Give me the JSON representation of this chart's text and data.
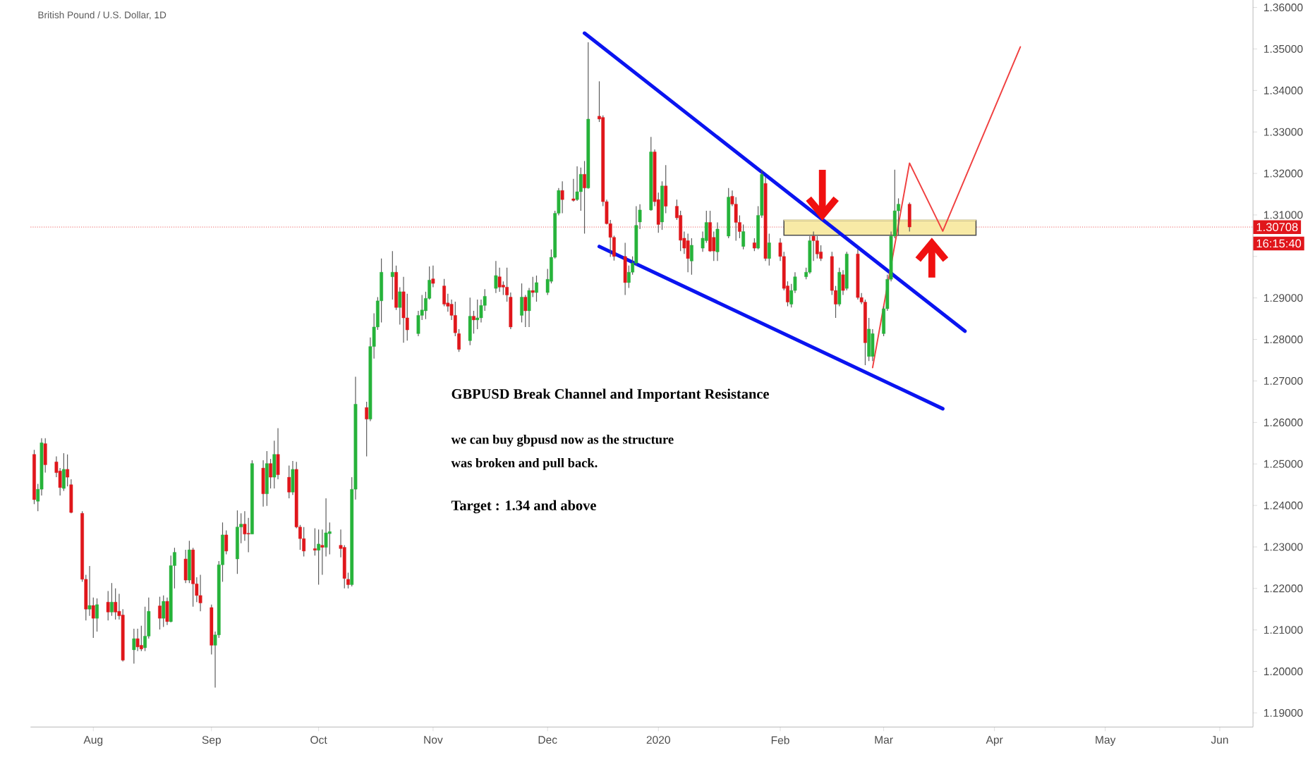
{
  "chart_data": {
    "type": "candlestick",
    "title": "British Pound / U.S. Dollar, 1D",
    "x": [
      "2019-07-16",
      "2019-07-17",
      "2019-07-18",
      "2019-07-19",
      "2019-07-22",
      "2019-07-23",
      "2019-07-24",
      "2019-07-25",
      "2019-07-26",
      "2019-07-29",
      "2019-07-30",
      "2019-07-31",
      "2019-08-01",
      "2019-08-02",
      "2019-08-05",
      "2019-08-06",
      "2019-08-07",
      "2019-08-08",
      "2019-08-09",
      "2019-08-12",
      "2019-08-13",
      "2019-08-14",
      "2019-08-15",
      "2019-08-16",
      "2019-08-19",
      "2019-08-20",
      "2019-08-21",
      "2019-08-22",
      "2019-08-23",
      "2019-08-26",
      "2019-08-27",
      "2019-08-28",
      "2019-08-29",
      "2019-08-30",
      "2019-09-02",
      "2019-09-03",
      "2019-09-04",
      "2019-09-05",
      "2019-09-06",
      "2019-09-09",
      "2019-09-10",
      "2019-09-11",
      "2019-09-12",
      "2019-09-13",
      "2019-09-16",
      "2019-09-17",
      "2019-09-18",
      "2019-09-19",
      "2019-09-20",
      "2019-09-23",
      "2019-09-24",
      "2019-09-25",
      "2019-09-26",
      "2019-09-27",
      "2019-09-30",
      "2019-10-01",
      "2019-10-02",
      "2019-10-03",
      "2019-10-04",
      "2019-10-07",
      "2019-10-08",
      "2019-10-09",
      "2019-10-10",
      "2019-10-11",
      "2019-10-14",
      "2019-10-15",
      "2019-10-16",
      "2019-10-17",
      "2019-10-18",
      "2019-10-21",
      "2019-10-22",
      "2019-10-23",
      "2019-10-24",
      "2019-10-25",
      "2019-10-28",
      "2019-10-29",
      "2019-10-30",
      "2019-10-31",
      "2019-11-01",
      "2019-11-04",
      "2019-11-05",
      "2019-11-06",
      "2019-11-07",
      "2019-11-08",
      "2019-11-11",
      "2019-11-12",
      "2019-11-13",
      "2019-11-14",
      "2019-11-15",
      "2019-11-18",
      "2019-11-19",
      "2019-11-20",
      "2019-11-21",
      "2019-11-22",
      "2019-11-25",
      "2019-11-26",
      "2019-11-27",
      "2019-11-28",
      "2019-11-29",
      "2019-12-02",
      "2019-12-03",
      "2019-12-04",
      "2019-12-05",
      "2019-12-06",
      "2019-12-09",
      "2019-12-10",
      "2019-12-11",
      "2019-12-12",
      "2019-12-13",
      "2019-12-16",
      "2019-12-17",
      "2019-12-18",
      "2019-12-19",
      "2019-12-20",
      "2019-12-23",
      "2019-12-24",
      "2019-12-25",
      "2019-12-26",
      "2019-12-27",
      "2019-12-30",
      "2019-12-31",
      "2020-01-01",
      "2020-01-02",
      "2020-01-03",
      "2020-01-06",
      "2020-01-07",
      "2020-01-08",
      "2020-01-09",
      "2020-01-10",
      "2020-01-13",
      "2020-01-14",
      "2020-01-15",
      "2020-01-16",
      "2020-01-17",
      "2020-01-20",
      "2020-01-21",
      "2020-01-22",
      "2020-01-23",
      "2020-01-24",
      "2020-01-27",
      "2020-01-28",
      "2020-01-29",
      "2020-01-30",
      "2020-01-31",
      "2020-02-03",
      "2020-02-04",
      "2020-02-05",
      "2020-02-06",
      "2020-02-07",
      "2020-02-10",
      "2020-02-11",
      "2020-02-12",
      "2020-02-13",
      "2020-02-14",
      "2020-02-17",
      "2020-02-18",
      "2020-02-19",
      "2020-02-20",
      "2020-02-21",
      "2020-02-24",
      "2020-02-25",
      "2020-02-26",
      "2020-02-27",
      "2020-02-28",
      "2020-03-02",
      "2020-03-03",
      "2020-03-04",
      "2020-03-05",
      "2020-03-06",
      "2020-03-09"
    ],
    "ohlc": [
      [
        1.2523,
        1.2534,
        1.2403,
        1.2414
      ],
      [
        1.241,
        1.2452,
        1.2386,
        1.2439
      ],
      [
        1.2439,
        1.2562,
        1.2424,
        1.2551
      ],
      [
        1.2549,
        1.2562,
        1.2479,
        1.2498
      ],
      [
        1.2505,
        1.2518,
        1.2468,
        1.2479
      ],
      [
        1.2483,
        1.249,
        1.2424,
        1.2443
      ],
      [
        1.2441,
        1.2526,
        1.2435,
        1.2487
      ],
      [
        1.2487,
        1.2523,
        1.2446,
        1.2468
      ],
      [
        1.245,
        1.2463,
        1.2381,
        1.2383
      ],
      [
        1.2381,
        1.2386,
        1.2216,
        1.2222
      ],
      [
        1.2222,
        1.2233,
        1.2123,
        1.215
      ],
      [
        1.215,
        1.2254,
        1.2134,
        1.2159
      ],
      [
        1.2159,
        1.2178,
        1.2081,
        1.2128
      ],
      [
        1.2128,
        1.2176,
        1.2096,
        1.2161
      ],
      [
        1.2167,
        1.2194,
        1.2123,
        1.2143
      ],
      [
        1.2143,
        1.2213,
        1.2134,
        1.2167
      ],
      [
        1.2167,
        1.22,
        1.2125,
        1.2143
      ],
      [
        1.2145,
        1.2187,
        1.2125,
        1.2134
      ],
      [
        1.2136,
        1.215,
        1.2024,
        1.2027
      ],
      [
        1.2052,
        1.2103,
        1.2019,
        1.2079
      ],
      [
        1.2079,
        1.2103,
        1.2049,
        1.2059
      ],
      [
        1.2063,
        1.211,
        1.2049,
        1.2054
      ],
      [
        1.2057,
        1.2156,
        1.2049,
        1.2085
      ],
      [
        1.2085,
        1.2178,
        1.2079,
        1.2145
      ],
      [
        1.2158,
        1.218,
        1.2101,
        1.2128
      ],
      [
        1.2128,
        1.2183,
        1.2107,
        1.2169
      ],
      [
        1.2169,
        1.2178,
        1.2112,
        1.212
      ],
      [
        1.212,
        1.2279,
        1.2118,
        1.2255
      ],
      [
        1.2255,
        1.2298,
        1.22,
        1.2287
      ],
      [
        1.2271,
        1.2293,
        1.2213,
        1.222
      ],
      [
        1.222,
        1.2315,
        1.2213,
        1.2293
      ],
      [
        1.2293,
        1.2298,
        1.2156,
        1.2211
      ],
      [
        1.2211,
        1.2227,
        1.2167,
        1.2183
      ],
      [
        1.2183,
        1.2233,
        1.2145,
        1.2165
      ],
      [
        1.2154,
        1.2161,
        1.2041,
        1.2063
      ],
      [
        1.2063,
        1.2096,
        1.1961,
        1.2088
      ],
      [
        1.2088,
        1.2266,
        1.2081,
        1.2257
      ],
      [
        1.2257,
        1.2359,
        1.2216,
        1.2329
      ],
      [
        1.2329,
        1.234,
        1.2282,
        1.229
      ],
      [
        1.2271,
        1.2388,
        1.2235,
        1.2348
      ],
      [
        1.2348,
        1.2381,
        1.2309,
        1.2355
      ],
      [
        1.2355,
        1.2386,
        1.2315,
        1.2331
      ],
      [
        1.2333,
        1.237,
        1.2287,
        1.2331
      ],
      [
        1.2331,
        1.2509,
        1.2331,
        1.2501
      ],
      [
        1.249,
        1.2509,
        1.2397,
        1.2428
      ],
      [
        1.2428,
        1.2531,
        1.2399,
        1.2501
      ],
      [
        1.2501,
        1.2512,
        1.2441,
        1.2468
      ],
      [
        1.2468,
        1.2556,
        1.2441,
        1.2523
      ],
      [
        1.2523,
        1.2586,
        1.2463,
        1.2474
      ],
      [
        1.2468,
        1.2496,
        1.2417,
        1.2432
      ],
      [
        1.2432,
        1.2507,
        1.2425,
        1.2487
      ],
      [
        1.2487,
        1.2505,
        1.2345,
        1.2348
      ],
      [
        1.2348,
        1.2353,
        1.2293,
        1.232
      ],
      [
        1.232,
        1.2348,
        1.2277,
        1.229
      ],
      [
        1.2296,
        1.2345,
        1.2279,
        1.2292
      ],
      [
        1.2292,
        1.2342,
        1.2209,
        1.2307
      ],
      [
        1.2304,
        1.2342,
        1.2233,
        1.2299
      ],
      [
        1.2299,
        1.2417,
        1.2277,
        1.2334
      ],
      [
        1.2332,
        1.2359,
        1.2282,
        1.2337
      ],
      [
        1.2304,
        1.2342,
        1.2275,
        1.2296
      ],
      [
        1.2299,
        1.2304,
        1.22,
        1.2224
      ],
      [
        1.2222,
        1.2238,
        1.22,
        1.2209
      ],
      [
        1.2209,
        1.2468,
        1.2205,
        1.2439
      ],
      [
        1.2439,
        1.271,
        1.2414,
        1.2644
      ],
      [
        1.2636,
        1.265,
        1.2518,
        1.2608
      ],
      [
        1.2608,
        1.2805,
        1.2603,
        1.2783
      ],
      [
        1.2783,
        1.2863,
        1.2754,
        1.283
      ],
      [
        1.283,
        1.2902,
        1.2823,
        1.2893
      ],
      [
        1.2893,
        1.2995,
        1.2841,
        1.2962
      ],
      [
        1.2951,
        1.3013,
        1.2896,
        1.2962
      ],
      [
        1.2962,
        1.2978,
        1.2871,
        1.2877
      ],
      [
        1.2877,
        1.2926,
        1.2836,
        1.2915
      ],
      [
        1.2915,
        1.2951,
        1.2792,
        1.2852
      ],
      [
        1.2852,
        1.291,
        1.2797,
        1.2823
      ],
      [
        1.2814,
        1.2869,
        1.2808,
        1.2858
      ],
      [
        1.2858,
        1.2907,
        1.2847,
        1.2871
      ],
      [
        1.2869,
        1.2915,
        1.2849,
        1.2899
      ],
      [
        1.2899,
        1.2976,
        1.2896,
        1.2943
      ],
      [
        1.2946,
        1.2978,
        1.2926,
        1.2935
      ],
      [
        1.2929,
        1.2946,
        1.288,
        1.2885
      ],
      [
        1.2888,
        1.291,
        1.2867,
        1.288
      ],
      [
        1.2885,
        1.2896,
        1.2847,
        1.2858
      ],
      [
        1.2858,
        1.2891,
        1.2808,
        1.2816
      ],
      [
        1.2814,
        1.2825,
        1.277,
        1.2776
      ],
      [
        1.2797,
        1.2901,
        1.2786,
        1.2856
      ],
      [
        1.2856,
        1.2869,
        1.2814,
        1.2847
      ],
      [
        1.2847,
        1.2896,
        1.2825,
        1.2852
      ],
      [
        1.2852,
        1.2896,
        1.2841,
        1.2882
      ],
      [
        1.2882,
        1.2921,
        1.2869,
        1.2904
      ],
      [
        1.2923,
        1.2989,
        1.2912,
        1.2954
      ],
      [
        1.2951,
        1.2973,
        1.2915,
        1.2926
      ],
      [
        1.2931,
        1.294,
        1.2907,
        1.2926
      ],
      [
        1.2926,
        1.2973,
        1.2891,
        1.2907
      ],
      [
        1.2902,
        1.2913,
        1.2825,
        1.283
      ],
      [
        1.2858,
        1.2935,
        1.2841,
        1.2902
      ],
      [
        1.2902,
        1.2907,
        1.283,
        1.2869
      ],
      [
        1.2869,
        1.2924,
        1.283,
        1.2918
      ],
      [
        1.2918,
        1.2951,
        1.2902,
        1.2913
      ],
      [
        1.2913,
        1.2954,
        1.2891,
        1.2937
      ],
      [
        1.2913,
        1.297,
        1.2907,
        1.2945
      ],
      [
        1.294,
        1.3017,
        1.2935,
        1.2998
      ],
      [
        1.2998,
        1.311,
        1.2995,
        1.3104
      ],
      [
        1.3104,
        1.3165,
        1.3099,
        1.3159
      ],
      [
        1.3159,
        1.3181,
        1.3104,
        1.3137
      ],
      [
        1.3139,
        1.3187,
        1.3132,
        1.3135
      ],
      [
        1.3137,
        1.3217,
        1.3134,
        1.3156
      ],
      [
        1.3156,
        1.3214,
        1.311,
        1.3198
      ],
      [
        1.3198,
        1.323,
        1.3055,
        1.3165
      ],
      [
        1.3165,
        1.3516,
        1.3163,
        1.3331
      ],
      [
        1.3338,
        1.3422,
        1.3324,
        1.3331
      ],
      [
        1.3335,
        1.334,
        1.3121,
        1.3132
      ],
      [
        1.3132,
        1.3137,
        1.3077,
        1.3079
      ],
      [
        1.3079,
        1.3088,
        1.2999,
        1.3046
      ],
      [
        1.3046,
        1.305,
        1.299,
        1.3
      ],
      [
        1.3,
        1.3033,
        1.2907,
        1.2937
      ],
      [
        1.2937,
        1.2978,
        1.2924,
        1.2962
      ],
      [
        1.2962,
        1.3,
        1.2956,
        1.2984
      ],
      [
        1.2984,
        1.3121,
        1.2978,
        1.3075
      ],
      [
        1.3083,
        1.3126,
        1.3066,
        1.3112
      ],
      [
        1.3112,
        1.3288,
        1.311,
        1.3252
      ],
      [
        1.3252,
        1.3258,
        1.3121,
        1.3132
      ],
      [
        1.3137,
        1.3154,
        1.3057,
        1.3077
      ],
      [
        1.3083,
        1.3181,
        1.3064,
        1.317
      ],
      [
        1.317,
        1.322,
        1.3104,
        1.3121
      ],
      [
        1.3121,
        1.3137,
        1.3088,
        1.3093
      ],
      [
        1.3099,
        1.311,
        1.3013,
        1.3039
      ],
      [
        1.3044,
        1.306,
        1.3006,
        1.302
      ],
      [
        1.3038,
        1.3055,
        1.2962,
        1.2995
      ],
      [
        1.2989,
        1.3044,
        1.2956,
        1.3027
      ],
      [
        1.302,
        1.306,
        1.3011,
        1.3044
      ],
      [
        1.3038,
        1.311,
        1.3033,
        1.3082
      ],
      [
        1.3082,
        1.311,
        1.3011,
        1.3013
      ],
      [
        1.3046,
        1.306,
        1.2989,
        1.3013
      ],
      [
        1.3011,
        1.3082,
        1.2989,
        1.3066
      ],
      [
        1.3049,
        1.3165,
        1.3044,
        1.3143
      ],
      [
        1.3145,
        1.3159,
        1.3121,
        1.3126
      ],
      [
        1.3126,
        1.3143,
        1.3038,
        1.3082
      ],
      [
        1.3082,
        1.3099,
        1.3044,
        1.306
      ],
      [
        1.3024,
        1.3077,
        1.3017,
        1.306
      ],
      [
        1.3033,
        1.3044,
        1.3013,
        1.302
      ],
      [
        1.302,
        1.3121,
        1.3017,
        1.3099
      ],
      [
        1.3099,
        1.3209,
        1.3093,
        1.3198
      ],
      [
        1.3176,
        1.3192,
        1.2989,
        1.2995
      ],
      [
        1.2995,
        1.3055,
        1.2978,
        1.3033
      ],
      [
        1.3033,
        1.3044,
        1.2989,
        1.3
      ],
      [
        1.3,
        1.3011,
        1.2918,
        1.2923
      ],
      [
        1.2929,
        1.294,
        1.288,
        1.289
      ],
      [
        1.2885,
        1.2934,
        1.2877,
        1.2918
      ],
      [
        1.2918,
        1.2962,
        1.2912,
        1.2951
      ],
      [
        1.2951,
        1.2973,
        1.2945,
        1.2962
      ],
      [
        1.2962,
        1.3049,
        1.2958,
        1.3038
      ],
      [
        1.3049,
        1.306,
        1.2989,
        1.3038
      ],
      [
        1.3038,
        1.3049,
        1.2995,
        1.3006
      ],
      [
        1.3011,
        1.3027,
        1.2989,
        1.2995
      ],
      [
        1.3,
        1.3011,
        1.2907,
        1.2918
      ],
      [
        1.2918,
        1.2929,
        1.2852,
        1.2885
      ],
      [
        1.2885,
        1.2973,
        1.288,
        1.2962
      ],
      [
        1.2956,
        1.2967,
        1.2907,
        1.2918
      ],
      [
        1.2923,
        1.3011,
        1.2918,
        1.3006
      ],
      [
        1.3006,
        1.3017,
        1.2896,
        1.2901
      ],
      [
        1.2901,
        1.2912,
        1.2885,
        1.289
      ],
      [
        1.289,
        1.2896,
        1.2738,
        1.2792
      ],
      [
        1.2759,
        1.2852,
        1.2748,
        1.2825
      ],
      [
        1.2759,
        1.2825,
        1.2748,
        1.2814
      ],
      [
        1.2814,
        1.288,
        1.2808,
        1.2874
      ],
      [
        1.2874,
        1.2956,
        1.2869,
        1.2945
      ],
      [
        1.2945,
        1.306,
        1.294,
        1.3049
      ],
      [
        1.3049,
        1.3209,
        1.3044,
        1.311
      ],
      [
        1.311,
        1.314,
        1.305,
        1.3126
      ],
      [
        1.3126,
        1.313,
        1.306,
        1.3071
      ]
    ],
    "xlim": [
      "2019-07-15",
      "2020-06-10"
    ],
    "xticks": [
      {
        "value": "2019-08-01",
        "label": "Aug"
      },
      {
        "value": "2019-09-02",
        "label": "Sep"
      },
      {
        "value": "2019-10-01",
        "label": "Oct"
      },
      {
        "value": "2019-11-01",
        "label": "Nov"
      },
      {
        "value": "2019-12-02",
        "label": "Dec"
      },
      {
        "value": "2020-01-01",
        "label": "2020"
      },
      {
        "value": "2020-02-03",
        "label": "Feb"
      },
      {
        "value": "2020-03-02",
        "label": "Mar"
      },
      {
        "value": "2020-04-01",
        "label": "Apr"
      },
      {
        "value": "2020-05-01",
        "label": "May"
      },
      {
        "value": "2020-06-01",
        "label": "Jun"
      }
    ],
    "ylim": [
      1.1866,
      1.3618
    ],
    "yticks": [
      {
        "value": 1.19,
        "label": "1.19000"
      },
      {
        "value": 1.2,
        "label": "1.20000"
      },
      {
        "value": 1.21,
        "label": "1.21000"
      },
      {
        "value": 1.22,
        "label": "1.22000"
      },
      {
        "value": 1.23,
        "label": "1.23000"
      },
      {
        "value": 1.24,
        "label": "1.24000"
      },
      {
        "value": 1.25,
        "label": "1.25000"
      },
      {
        "value": 1.26,
        "label": "1.26000"
      },
      {
        "value": 1.27,
        "label": "1.27000"
      },
      {
        "value": 1.28,
        "label": "1.28000"
      },
      {
        "value": 1.29,
        "label": "1.29000"
      },
      {
        "value": 1.3,
        "label": null
      },
      {
        "value": 1.31,
        "label": "1.31000"
      },
      {
        "value": 1.32,
        "label": "1.32000"
      },
      {
        "value": 1.33,
        "label": "1.33000"
      },
      {
        "value": 1.34,
        "label": "1.34000"
      },
      {
        "value": 1.35,
        "label": "1.35000"
      },
      {
        "value": 1.36,
        "label": "1.36000"
      }
    ],
    "ref_lines": [
      {
        "axis": "y",
        "value": 1.30708,
        "label": "1.30708",
        "color": "#f08080"
      }
    ],
    "series": [
      {
        "type": "line",
        "color": "#0a14f0",
        "x": [
          "2019-12-12",
          "2020-03-24"
        ],
        "values": [
          1.3538,
          1.282
        ]
      },
      {
        "type": "line",
        "color": "#0a14f0",
        "x": [
          "2019-12-16",
          "2020-03-18"
        ],
        "values": [
          1.3024,
          1.2633
        ]
      },
      {
        "type": "line",
        "color": "#f04040",
        "x": [
          "2020-02-28",
          "2020-03-09",
          "2020-03-18",
          "2020-04-08"
        ],
        "values": [
          1.2732,
          1.3225,
          1.3061,
          1.3505
        ]
      },
      {
        "type": "line",
        "color": "#f8eaa6",
        "x": [
          "2020-02-04",
          "2020-03-27"
        ],
        "values": [
          1.3087,
          1.3087
        ],
        "lower": [
          1.3051,
          1.3051
        ],
        "upper": [
          1.3087,
          1.3087
        ]
      }
    ],
    "annotations": [
      "GBPUSD Break Channel and Important Resistance",
      "we can buy gbpusd now as the structure",
      "was broken and pull back.",
      "Target : 1.34 and above",
      "16:15:40"
    ]
  }
}
